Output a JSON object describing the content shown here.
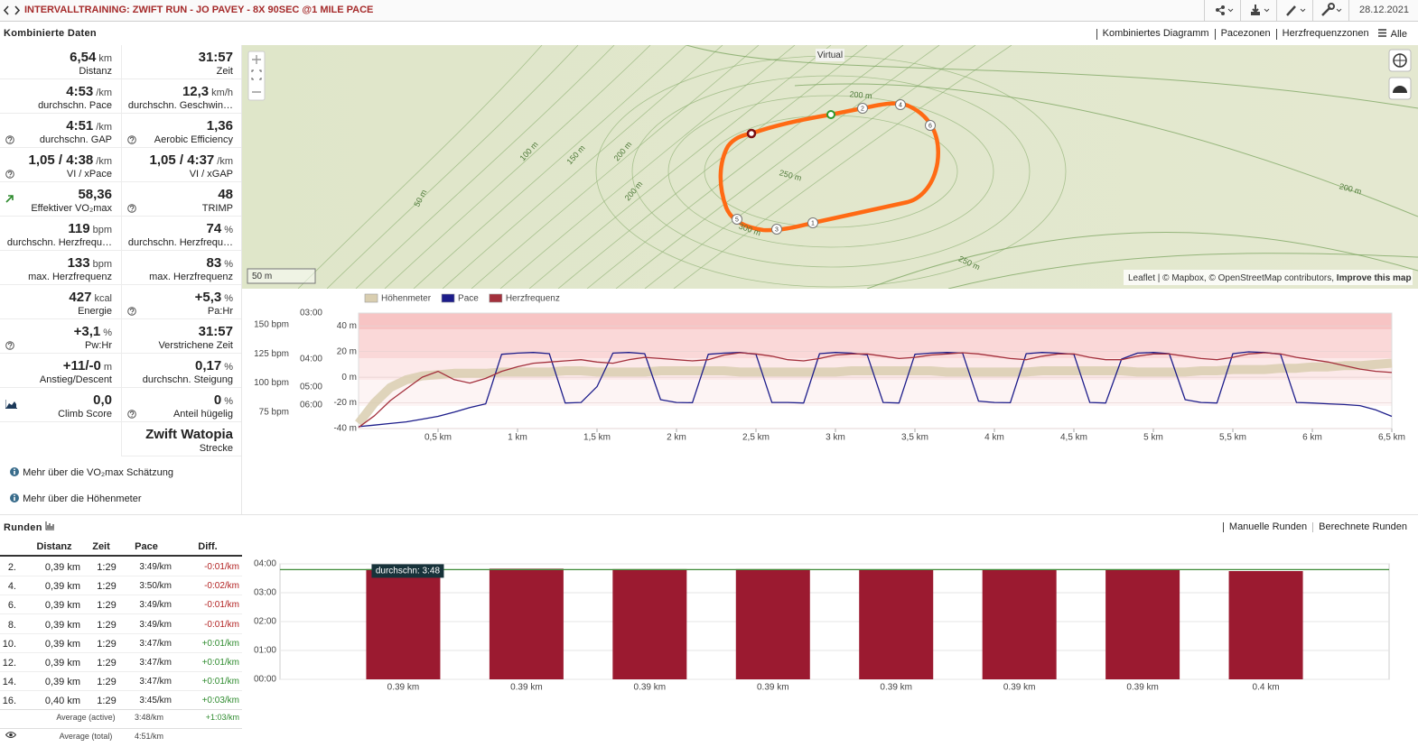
{
  "header": {
    "title": "INTERVALLTRAINING: ZWIFT RUN - JO PAVEY - 8X 90SEC @1 MILE PACE",
    "date": "28.12.2021"
  },
  "combined": {
    "title": "Kombinierte Daten",
    "tabs": [
      "Kombiniertes Diagramm",
      "Pacezonen",
      "Herzfrequenzzonen",
      "Alle"
    ]
  },
  "stats": [
    [
      {
        "value": "6,54",
        "unit": "km",
        "label": "Distanz"
      },
      {
        "value": "31:57",
        "label": "Zeit"
      }
    ],
    [
      {
        "value": "4:53",
        "unit": "/km",
        "label": "durchschn. Pace"
      },
      {
        "value": "12,3",
        "unit": "km/h",
        "label": "durchschn. Geschwin…"
      }
    ],
    [
      {
        "value": "4:51",
        "unit": "/km",
        "label": "durchschn. GAP",
        "help": true
      },
      {
        "value": "1,36",
        "label": "Aerobic Efficiency",
        "help": true
      }
    ],
    [
      {
        "value": "1,05 / 4:38",
        "unit": "/km",
        "label": "VI / xPace",
        "help": true
      },
      {
        "value": "1,05 / 4:37",
        "unit": "/km",
        "label": "VI / xGAP"
      }
    ],
    [
      {
        "value": "58,36",
        "label": "Effektiver VO₂max",
        "icon": "trend"
      },
      {
        "value": "48",
        "label": "TRIMP",
        "help": true
      }
    ],
    [
      {
        "value": "119",
        "unit": "bpm",
        "label": "durchschn. Herzfrequ…"
      },
      {
        "value": "74",
        "unit": "%",
        "label": "durchschn. Herzfrequ…"
      }
    ],
    [
      {
        "value": "133",
        "unit": "bpm",
        "label": "max. Herzfrequenz"
      },
      {
        "value": "83",
        "unit": "%",
        "label": "max. Herzfrequenz"
      }
    ],
    [
      {
        "value": "427",
        "unit": "kcal",
        "label": "Energie"
      },
      {
        "value": "+5,3",
        "unit": "%",
        "label": "Pa:Hr",
        "help": true
      }
    ],
    [
      {
        "value": "+3,1",
        "unit": "%",
        "label": "Pw:Hr",
        "help": true
      },
      {
        "value": "31:57",
        "label": "Verstrichene Zeit"
      }
    ],
    [
      {
        "value": "+11/-0",
        "unit": "m",
        "label": "Anstieg/Descent"
      },
      {
        "value": "0,17",
        "unit": "%",
        "label": "durchschn. Steigung"
      }
    ],
    [
      {
        "value": "0,0",
        "label": "Climb Score",
        "icon": "chart"
      },
      {
        "value": "0",
        "unit": "%",
        "label": "Anteil hügelig",
        "help": true
      }
    ]
  ],
  "route": {
    "value": "Zwift Watopia",
    "label": "Strecke"
  },
  "links": [
    "Mehr über die VO₂max Schätzung",
    "Mehr über die Höhenmeter"
  ],
  "map": {
    "badge": "Virtual",
    "scale": "50 m",
    "attribution": "Leaflet | © Mapbox, © OpenStreetMap contributors,",
    "improve": "Improve this map",
    "markers": [
      "1",
      "2",
      "3",
      "4",
      "5",
      "6"
    ],
    "contour_labels": [
      "50 m",
      "100 m",
      "150 m",
      "200 m",
      "200 m",
      "250 m",
      "200 m",
      "300 m",
      "250 m",
      "200 m"
    ]
  },
  "laps": {
    "title": "Runden",
    "tabs": [
      "Manuelle Runden",
      "Berechnete Runden"
    ],
    "header": [
      "Distanz",
      "Zeit",
      "Pace",
      "Diff."
    ],
    "rows": [
      [
        "2.",
        "0,39 km",
        "1:29",
        "3:49/km",
        "-0:01/km"
      ],
      [
        "4.",
        "0,39 km",
        "1:29",
        "3:50/km",
        "-0:02/km"
      ],
      [
        "6.",
        "0,39 km",
        "1:29",
        "3:49/km",
        "-0:01/km"
      ],
      [
        "8.",
        "0,39 km",
        "1:29",
        "3:49/km",
        "-0:01/km"
      ],
      [
        "10.",
        "0,39 km",
        "1:29",
        "3:47/km",
        "+0:01/km"
      ],
      [
        "12.",
        "0,39 km",
        "1:29",
        "3:47/km",
        "+0:01/km"
      ],
      [
        "14.",
        "0,39 km",
        "1:29",
        "3:47/km",
        "+0:01/km"
      ],
      [
        "16.",
        "0,40 km",
        "1:29",
        "3:45/km",
        "+0:03/km"
      ]
    ],
    "footer": [
      [
        "Average (active)",
        "3:48/km",
        "+1:03/km"
      ],
      [
        "Average (total)",
        "4:51/km"
      ]
    ]
  },
  "chart_data": [
    {
      "type": "line",
      "x": [
        0,
        0.1,
        0.2,
        0.3,
        0.4,
        0.5,
        0.6,
        0.7,
        0.8,
        0.9,
        1,
        1.1,
        1.2,
        1.3,
        1.4,
        1.5,
        1.6,
        1.7,
        1.8,
        1.9,
        2,
        2.1,
        2.2,
        2.3,
        2.4,
        2.5,
        2.6,
        2.7,
        2.8,
        2.9,
        3,
        3.1,
        3.2,
        3.3,
        3.4,
        3.5,
        3.6,
        3.7,
        3.8,
        3.9,
        4,
        4.1,
        4.2,
        4.3,
        4.4,
        4.5,
        4.6,
        4.7,
        4.8,
        4.9,
        5,
        5.1,
        5.2,
        5.3,
        5.4,
        5.5,
        5.6,
        5.7,
        5.8,
        5.9,
        6,
        6.1,
        6.2,
        6.3,
        6.4,
        6.5
      ],
      "series": [
        {
          "name": "Höhenmeter",
          "color": "#d9ceb0",
          "axis": "y2",
          "values": [
            -36,
            -20,
            -8,
            -2,
            1,
            2,
            3,
            3,
            3,
            4,
            4,
            4,
            4,
            5,
            5,
            4,
            4,
            4,
            4,
            5,
            5,
            5,
            5,
            5,
            4,
            4,
            4,
            4,
            4,
            4,
            4,
            5,
            5,
            5,
            5,
            5,
            5,
            4,
            4,
            4,
            4,
            4,
            4,
            5,
            5,
            5,
            5,
            5,
            5,
            4,
            4,
            4,
            4,
            5,
            5,
            6,
            6,
            6,
            7,
            7,
            8,
            8,
            9,
            9,
            10,
            11
          ]
        },
        {
          "name": "Pace",
          "color": "#1c1c8a",
          "axis": "y3",
          "values": [
            470,
            460,
            450,
            440,
            425,
            410,
            390,
            370,
            355,
            232,
            230,
            229,
            231,
            352,
            350,
            300,
            230,
            229,
            231,
            340,
            350,
            351,
            232,
            230,
            229,
            232,
            350,
            350,
            352,
            231,
            229,
            230,
            233,
            350,
            352,
            232,
            230,
            229,
            230,
            345,
            350,
            351,
            231,
            229,
            230,
            232,
            350,
            352,
            240,
            230,
            229,
            231,
            340,
            350,
            352,
            231,
            228,
            229,
            232,
            350,
            352,
            355,
            358,
            362,
            380,
            410
          ]
        },
        {
          "name": "Herzfrequenz",
          "color": "#a3303c",
          "axis": "y",
          "values": [
            62,
            72,
            85,
            95,
            105,
            110,
            103,
            100,
            104,
            110,
            114,
            117,
            118,
            119,
            120,
            118,
            117,
            120,
            122,
            121,
            120,
            119,
            120,
            124,
            126,
            125,
            123,
            120,
            119,
            121,
            124,
            125,
            125,
            123,
            121,
            122,
            124,
            125,
            126,
            125,
            123,
            121,
            120,
            123,
            125,
            125,
            122,
            120,
            120,
            123,
            125,
            125,
            123,
            121,
            120,
            122,
            125,
            126,
            125,
            122,
            120,
            118,
            115,
            112,
            110,
            109
          ]
        }
      ],
      "xlim": [
        0,
        6.5
      ],
      "xticks": [
        {
          "value": 0.5,
          "label": "0,5 km"
        },
        {
          "value": 1,
          "label": "1 km"
        },
        {
          "value": 1.5,
          "label": "1,5 km"
        },
        {
          "value": 2,
          "label": "2 km"
        },
        {
          "value": 2.5,
          "label": "2,5 km"
        },
        {
          "value": 3,
          "label": "3 km"
        },
        {
          "value": 3.5,
          "label": "3,5 km"
        },
        {
          "value": 4,
          "label": "4 km"
        },
        {
          "value": 4.5,
          "label": "4,5 km"
        },
        {
          "value": 5,
          "label": "5 km"
        },
        {
          "value": 5.5,
          "label": "5,5 km"
        },
        {
          "value": 6,
          "label": "6 km"
        },
        {
          "value": 6.5,
          "label": "6,5 km"
        }
      ],
      "ylim": [
        61,
        160
      ],
      "yticks": [
        {
          "value": 150,
          "label": "150 bpm"
        },
        {
          "value": 125,
          "label": "125 bpm"
        },
        {
          "value": 100,
          "label": "100 bpm"
        },
        {
          "value": 75,
          "label": "75 bpm"
        }
      ],
      "y2lim": [
        -40,
        50
      ],
      "y2ticks": [
        {
          "value": 40,
          "label": "40 m"
        },
        {
          "value": 20,
          "label": "20 m"
        },
        {
          "value": 0,
          "label": "0 m"
        },
        {
          "value": -20,
          "label": "-20 m"
        },
        {
          "value": -40,
          "label": "-40 m"
        }
      ],
      "y3lim": [
        483,
        180
      ],
      "y3scale": "reciprocal",
      "y3ticks": [
        {
          "value": 180,
          "label": "03:00"
        },
        {
          "value": 240,
          "label": "04:00"
        },
        {
          "value": 300,
          "label": "05:00"
        },
        {
          "value": 360,
          "label": "06:00"
        }
      ],
      "grid": true
    },
    {
      "type": "bar",
      "categories": [
        "0.39 km",
        "0.39 km",
        "0.39 km",
        "0.39 km",
        "0.39 km",
        "0.39 km",
        "0.39 km",
        "0.4 km"
      ],
      "values": [
        229,
        230,
        229,
        229,
        227,
        227,
        227,
        225
      ],
      "color": "#9b1a30",
      "ylim": [
        0,
        240
      ],
      "yticks": [
        {
          "value": 0,
          "label": "00:00"
        },
        {
          "value": 60,
          "label": "01:00"
        },
        {
          "value": 120,
          "label": "02:00"
        },
        {
          "value": 180,
          "label": "03:00"
        },
        {
          "value": 240,
          "label": "04:00"
        }
      ],
      "grid": true,
      "average": {
        "value": 228,
        "label": "durchschn: 3:48",
        "color": "#3d8b37"
      }
    }
  ]
}
